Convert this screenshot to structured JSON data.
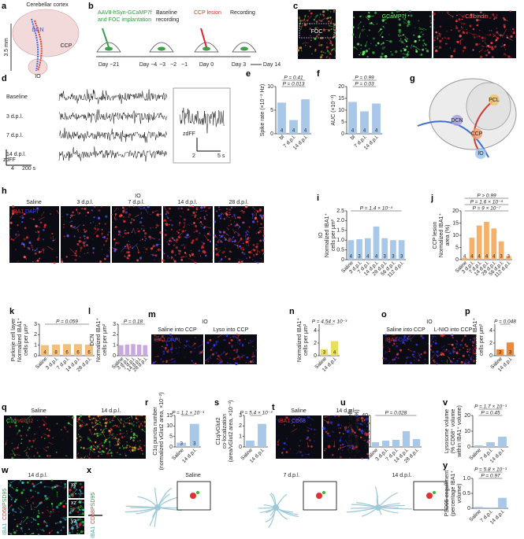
{
  "panels": [
    {
      "letter": "a",
      "labels": [
        "Cerebellar cortex",
        "DCN",
        "CCP",
        "IO",
        "3.5 mm"
      ]
    },
    {
      "letter": "b",
      "labels": [
        "AAV8-hSyn-GCaMP7f",
        "and FOC implantation",
        "Baseline",
        "recording",
        "CCP lesion",
        "Recording",
        "Day −21",
        "Day −4",
        "−3",
        "−2",
        "−1",
        "Day 0",
        "Day 3",
        "Day 14"
      ]
    },
    {
      "letter": "c",
      "labels": [
        "FOC",
        "GCaMP7f",
        "Calbindin"
      ]
    },
    {
      "letter": "d",
      "labels": [
        "Baseline",
        "3 d.p.l.",
        "7 d.p.l.",
        "14 d.p.l.",
        "zdFF",
        "4",
        "200 s",
        "zdFF",
        "2",
        "5 s"
      ]
    },
    {
      "letter": "g",
      "labels": [
        "PCL",
        "DCN",
        "CCP",
        "IO"
      ]
    },
    {
      "letter": "h",
      "labels": [
        "IO",
        "Saline",
        "3 d.p.l.",
        "7 d.p.l.",
        "14 d.p.l.",
        "28 d.p.l.",
        "IBA1",
        "DAPI"
      ]
    },
    {
      "letter": "m",
      "labels": [
        "IO",
        "Saline into CCP",
        "Lyso into CCP",
        "IBA1",
        "DAPI"
      ]
    },
    {
      "letter": "o",
      "labels": [
        "IO",
        "Saline into CCP",
        "L-NIO into CCP",
        "IBA1",
        "DAPI"
      ]
    },
    {
      "letter": "q",
      "labels": [
        "Saline",
        "14 d.p.l.",
        "C1q",
        "vGlut2"
      ]
    },
    {
      "letter": "t",
      "labels": [
        "Saline",
        "14 d.p.l.",
        "IBA1",
        "CD68"
      ]
    },
    {
      "letter": "w",
      "labels": [
        "14 d.p.l.",
        "IBA1",
        "CD68",
        "PSD95",
        "xy",
        "xz",
        "yz"
      ]
    },
    {
      "letter": "x",
      "labels": [
        "Saline",
        "7 d.p.l.",
        "14 d.p.l.",
        "IBA1",
        "CD68",
        "PSD95"
      ]
    }
  ],
  "chart_data": [
    {
      "type": "bar",
      "panel": "e",
      "ylabel": [
        "Spike rate (×10⁻² Hz)"
      ],
      "categories": [
        "bl",
        "7 d.p.l.",
        "14 d.p.l."
      ],
      "values": [
        6.6,
        2.9,
        7.3
      ],
      "n": [
        4,
        4,
        4
      ],
      "color": "#a9c8e8",
      "annotations": [
        "P = 0.013",
        "P = 0.41"
      ],
      "ylim": [
        0,
        10
      ],
      "yticks": [
        0,
        5,
        10
      ]
    },
    {
      "type": "bar",
      "panel": "f",
      "ylabel": [
        "AUC (×10⁻³)"
      ],
      "categories": [
        "bl",
        "7 d.p.l.",
        "14 d.p.l."
      ],
      "values": [
        13.5,
        9.5,
        12.8
      ],
      "n": [
        4,
        4,
        4
      ],
      "color": "#a9c8e8",
      "annotations": [
        "P = 0.03",
        "P = 0.99"
      ],
      "ylim": [
        0,
        20
      ],
      "yticks": [
        0,
        5,
        10,
        15,
        20
      ]
    },
    {
      "type": "bar",
      "panel": "i",
      "ylabel": [
        "IO",
        "Normalized IBA1⁺",
        "cells per μm²"
      ],
      "categories": [
        "Saline",
        "3 d.p.l.",
        "7 d.p.l.",
        "14 d.p.l.",
        "28 d.p.l.",
        "56 d.p.l.",
        "112 d.p.l."
      ],
      "values": [
        1,
        1.05,
        1.1,
        1.7,
        1.1,
        1,
        1
      ],
      "n": [
        4,
        3,
        4,
        4,
        3,
        3,
        3
      ],
      "color": "#a9c8e8",
      "annotations": [
        "P = 1.4 × 10⁻⁴"
      ],
      "ylim": [
        0,
        2.5
      ],
      "yticks": [
        0,
        0.5,
        {
          "value": 1,
          "label": "1.0"
        },
        1.5,
        {
          "value": 2,
          "label": "2.0"
        },
        2.5
      ]
    },
    {
      "type": "bar",
      "panel": "j",
      "ylabel": [
        "CCP lesion",
        "Normalized IBA1⁺",
        "area (%)"
      ],
      "categories": [
        "Saline",
        "3 d.p.l.",
        "7 d.p.l.",
        "14 d.p.l.",
        "28 d.p.l.",
        "56 d.p.l.",
        "112 d.p.l."
      ],
      "values": [
        0.8,
        9,
        14,
        15.5,
        12.8,
        7.5,
        1.5
      ],
      "n": [
        4,
        4,
        4,
        4,
        4,
        3,
        3
      ],
      "color": "#f5b16a",
      "annotations": [
        "P = 9 × 10⁻⁷",
        "P = 1.6 × 10⁻⁴",
        "P > 0.99"
      ],
      "ylim": [
        0,
        20
      ],
      "yticks": [
        0,
        5,
        10,
        15,
        20
      ]
    },
    {
      "type": "bar",
      "panel": "k",
      "ylabel": [
        "Purkinje cell layer",
        "Normalized IBA1⁺",
        "cells per μm²"
      ],
      "categories": [
        "Saline",
        "3 d.p.l.",
        "7 d.p.l.",
        "14 d.p.l.",
        "28 d.p.l."
      ],
      "values": [
        1,
        1.05,
        1.1,
        1.1,
        1.05
      ],
      "n": [
        4,
        8,
        6,
        6,
        6
      ],
      "color": "#f3c07a",
      "annotations": [
        "P = 0.059"
      ],
      "ylim": [
        0,
        3
      ],
      "yticks": [
        0,
        1,
        2,
        3
      ]
    },
    {
      "type": "bar",
      "panel": "l",
      "ylabel": [
        "DCN",
        "Normalized IBA1⁺",
        "cells per μm²"
      ],
      "categories": [
        "Saline",
        "3 d.p.l.",
        "7 d.p.l.",
        "14 d.p.l.",
        "28 d.p.l."
      ],
      "values": [
        1,
        1.05,
        1.1,
        1.05,
        1
      ],
      "color": "#c9a8e0",
      "annotations": [
        "P = 0.18"
      ],
      "ylim": [
        0,
        3
      ],
      "yticks": [
        0,
        1,
        2,
        3
      ]
    },
    {
      "type": "bar",
      "panel": "n",
      "ylabel": [
        "Normalized IBA1⁺",
        "cells per μm²"
      ],
      "categories": [
        "Saline",
        "14 d.p.l."
      ],
      "values": [
        1,
        2.3
      ],
      "n": [
        3,
        4
      ],
      "color": "#e8e05a",
      "annotations": [
        "P = 4.54 × 10⁻³"
      ],
      "ylim": [
        0,
        5
      ],
      "yticks": [
        0,
        2,
        4
      ]
    },
    {
      "type": "bar",
      "panel": "p",
      "ylabel": [
        "Normalized IBA1⁺",
        "cells per μm²"
      ],
      "categories": [
        "Saline",
        "14 d.p.l."
      ],
      "values": [
        1,
        2.1
      ],
      "n": [
        3,
        3
      ],
      "color": "#ec8a3c",
      "annotations": [
        "P = 0.048"
      ],
      "ylim": [
        0,
        5
      ],
      "yticks": [
        0,
        2,
        4
      ]
    },
    {
      "type": "bar",
      "panel": "r",
      "ylabel": [
        "C1q puncta number",
        "(normalized vGlut2 area, ×10⁻²)"
      ],
      "categories": [
        "Saline",
        "14 d.p.l."
      ],
      "values": [
        2,
        11
      ],
      "n": [
        3,
        3
      ],
      "color": "#a9c8e8",
      "annotations": [
        "P = 1.1 × 10⁻³"
      ],
      "ylim": [
        0,
        15
      ],
      "yticks": [
        0,
        5,
        10,
        15
      ]
    },
    {
      "type": "bar",
      "panel": "s",
      "ylabel": [
        "C1q/vGlut2",
        "co-localization",
        "(area/vGlut2 area, ×10⁻³)"
      ],
      "categories": [
        "Saline",
        "14 d.p.l."
      ],
      "values": [
        0.6,
        2.2
      ],
      "color": "#a9c8e8",
      "annotations": [
        "P = 5.4 × 10⁻³"
      ],
      "ylim": [
        0,
        3
      ],
      "yticks": [
        0,
        1,
        2,
        3
      ]
    },
    {
      "type": "bar",
      "panel": "u",
      "ylabel": [
        "CD68⁺IBA1⁺ cells",
        "of IBA1⁺ cells (%)"
      ],
      "categories": [
        "Saline",
        "3 d.p.l.",
        "7 d.p.l.",
        "14 d.p.l.",
        "28 d.p.l."
      ],
      "values": [
        6,
        8,
        9,
        20,
        10
      ],
      "color": "#a9c8e8",
      "annotations": [
        "P = 0.028"
      ],
      "ylim": [
        0,
        40
      ],
      "yticks": [
        0,
        10,
        20,
        30,
        40
      ]
    },
    {
      "type": "bar",
      "panel": "v",
      "ylabel": [
        "Lysosome volume",
        "(% CD68⁺ volume",
        "within IBA1⁺ volume)"
      ],
      "categories": [
        "Saline",
        "7 d.p.l.",
        "14 d.p.l."
      ],
      "values": [
        1,
        3,
        6.5
      ],
      "color": "#a9c8e8",
      "annotations": [
        "P = 0.45",
        "P = 1.7 × 10⁻³"
      ],
      "ylim": [
        0,
        20
      ],
      "yticks": [
        0,
        10,
        20
      ]
    },
    {
      "type": "bar",
      "panel": "y",
      "ylabel": [
        "PSD95 engulfment",
        "(percentage IBA1⁺",
        "volume)"
      ],
      "categories": [
        "Saline",
        "7 d.p.l.",
        "14 d.p.l."
      ],
      "values": [
        0.05,
        0.03,
        0.35
      ],
      "color": "#a9c8e8",
      "annotations": [
        "P = 0.97",
        "P = 5.8 × 10⁻³"
      ],
      "ylim": [
        0,
        1
      ],
      "yticks": [
        0,
        0.5,
        {
          "value": 1,
          "label": "1.0"
        }
      ]
    }
  ]
}
